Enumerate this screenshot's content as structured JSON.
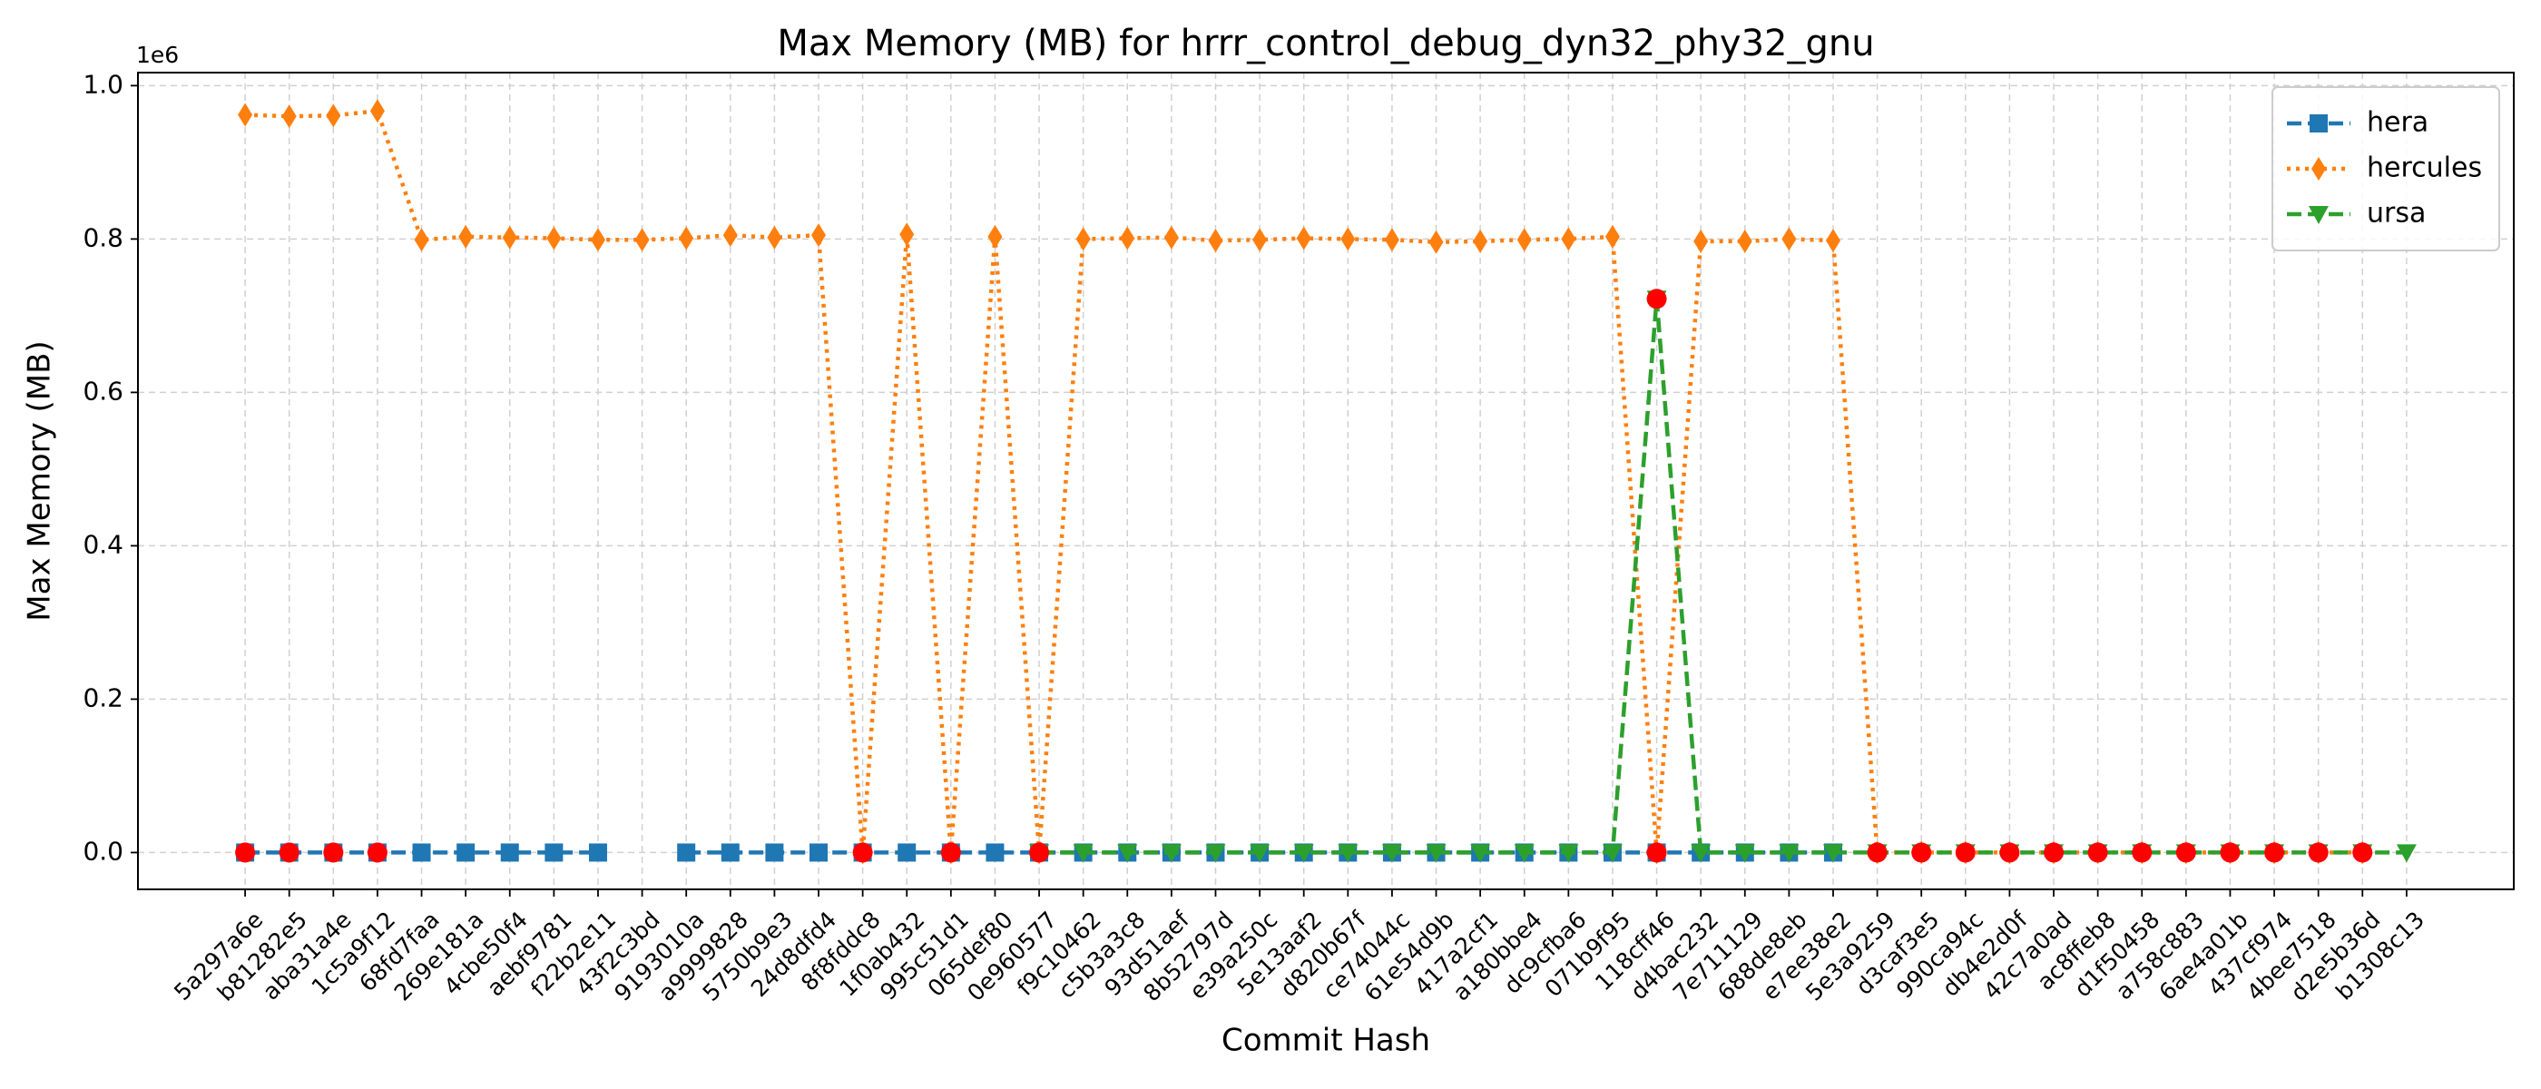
{
  "chart_data": {
    "type": "line",
    "title": "Max Memory (MB) for hrrr_control_debug_dyn32_phy32_gnu",
    "x_label": "Commit Hash",
    "y_label": "Max Memory (MB)",
    "y_offset_label": "1e6",
    "categories": [
      "5a297a6e",
      "b81282e5",
      "aba31a4e",
      "1c5a9f12",
      "68fd7faa",
      "269e181a",
      "4cbe50f4",
      "aebf9781",
      "f22b2e11",
      "43f2c3bd",
      "9193010a",
      "a9999828",
      "5750b9e3",
      "24d8dfd4",
      "8f8fddc8",
      "1f0ab432",
      "995c51d1",
      "065def80",
      "0e960577",
      "f9c10462",
      "c5b3a3c8",
      "93d51aef",
      "8b52797d",
      "e39a250c",
      "5e13aaf2",
      "d820b67f",
      "ce74044c",
      "61e54d9b",
      "417a2cf1",
      "a180bbe4",
      "dc9cfba6",
      "071b9f95",
      "118cff46",
      "d4bac232",
      "7e711129",
      "688de8eb",
      "e7ee38e2",
      "5e3a9259",
      "d3caf3e5",
      "990ca94c",
      "db4e2d0f",
      "42c7a0ad",
      "ac8ffeb8",
      "d1f50458",
      "a758c883",
      "6ae4a01b",
      "437cf974",
      "4bee7518",
      "d2e5b36d",
      "b1308c13"
    ],
    "series": [
      {
        "name": "hera",
        "color": "#1f77b4",
        "linestyle": "dashed",
        "marker": "square",
        "flagged": [
          0,
          1,
          2,
          3
        ],
        "values": [
          0,
          0,
          0,
          0,
          0,
          0,
          0,
          0,
          0,
          null,
          0,
          0,
          0,
          0,
          0,
          0,
          0,
          0,
          0,
          0,
          0,
          0,
          0,
          0,
          0,
          0,
          0,
          0,
          0,
          0,
          0,
          0,
          0,
          0,
          0,
          0,
          0,
          null,
          null,
          null,
          null,
          null,
          null,
          null,
          null,
          null,
          null,
          null,
          null,
          null
        ]
      },
      {
        "name": "hercules",
        "color": "#ff7f0e",
        "linestyle": "dotted",
        "marker": "diamond",
        "flagged": [
          14,
          16,
          18,
          32,
          37,
          38,
          39,
          40,
          41,
          42,
          43,
          44,
          45,
          46,
          47,
          48
        ],
        "values": [
          962000,
          960000,
          961000,
          967000,
          799000,
          803000,
          802000,
          801000,
          799000,
          799000,
          801000,
          805000,
          802000,
          805000,
          0,
          806000,
          0,
          803000,
          0,
          800000,
          801000,
          802000,
          798000,
          799000,
          801000,
          800000,
          799000,
          796000,
          797000,
          799000,
          800000,
          803000,
          0,
          797000,
          797000,
          800000,
          798000,
          0,
          0,
          0,
          0,
          0,
          0,
          0,
          0,
          0,
          0,
          0,
          0,
          null
        ]
      },
      {
        "name": "ursa",
        "color": "#2ca02c",
        "linestyle": "dashed",
        "marker": "triangle-down",
        "flagged": [
          32
        ],
        "values": [
          null,
          null,
          null,
          null,
          null,
          null,
          null,
          null,
          null,
          null,
          null,
          null,
          null,
          null,
          null,
          null,
          null,
          null,
          0,
          0,
          0,
          0,
          0,
          0,
          0,
          0,
          0,
          0,
          0,
          0,
          0,
          0,
          722000,
          0,
          0,
          0,
          0,
          0,
          0,
          0,
          0,
          0,
          0,
          0,
          0,
          0,
          0,
          0,
          0,
          0
        ]
      }
    ],
    "flag_color": "#ff0000",
    "ylim": [
      -48000,
      1017000
    ],
    "yticks": [
      {
        "value": 0,
        "label": "0.0"
      },
      {
        "value": 200000,
        "label": "0.2"
      },
      {
        "value": 400000,
        "label": "0.4"
      },
      {
        "value": 600000,
        "label": "0.6"
      },
      {
        "value": 800000,
        "label": "0.8"
      },
      {
        "value": 1000000,
        "label": "1.0"
      }
    ],
    "grid": true,
    "legend": "upper right"
  }
}
